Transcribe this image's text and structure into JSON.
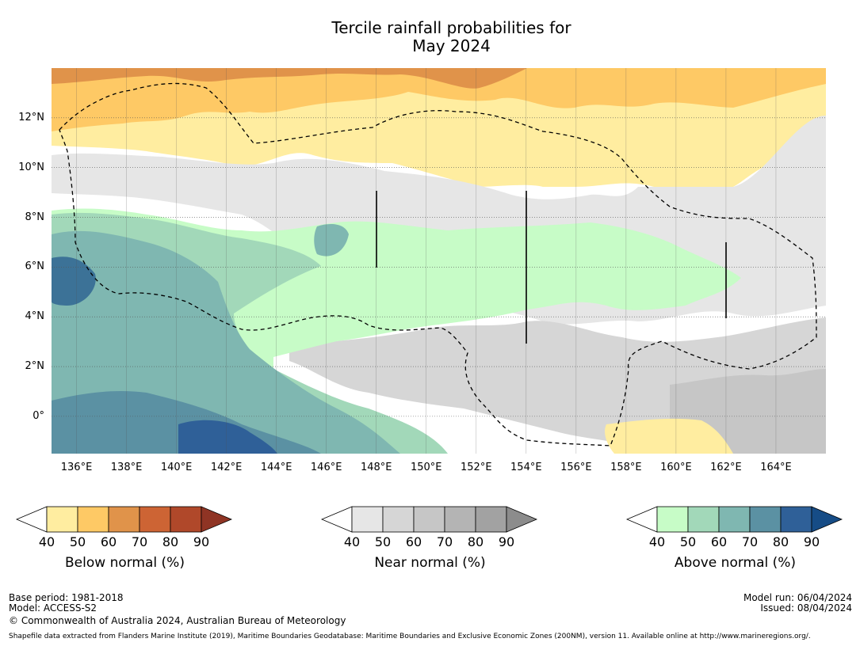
{
  "title": {
    "line1": "Tercile rainfall probabilities for",
    "line2": "May 2024"
  },
  "map": {
    "lon_range": [
      135,
      166
    ],
    "lat_range": [
      -1.5,
      14
    ],
    "x_ticks": [
      "136°E",
      "138°E",
      "140°E",
      "142°E",
      "144°E",
      "146°E",
      "148°E",
      "150°E",
      "152°E",
      "154°E",
      "156°E",
      "158°E",
      "160°E",
      "162°E",
      "164°E"
    ],
    "x_tick_values": [
      136,
      138,
      140,
      142,
      144,
      146,
      148,
      150,
      152,
      154,
      156,
      158,
      160,
      162,
      164
    ],
    "y_ticks": [
      "12°N",
      "10°N",
      "8°N",
      "6°N",
      "4°N",
      "2°N",
      "0°"
    ],
    "y_tick_values": [
      12,
      10,
      8,
      6,
      4,
      2,
      0
    ],
    "grid": true
  },
  "legends": [
    {
      "name": "Below normal (%)",
      "ticks": [
        "40",
        "50",
        "60",
        "70",
        "80",
        "90"
      ],
      "colors": [
        "#ffffff",
        "#ffeda0",
        "#fec965",
        "#e0934a",
        "#cd6434",
        "#b0482a",
        "#8f3424"
      ]
    },
    {
      "name": "Near normal (%)",
      "ticks": [
        "40",
        "50",
        "60",
        "70",
        "80",
        "90"
      ],
      "colors": [
        "#ffffff",
        "#e6e6e6",
        "#d6d6d6",
        "#c6c6c6",
        "#b4b4b4",
        "#a2a2a2",
        "#8c8c8c"
      ]
    },
    {
      "name": "Above normal (%)",
      "ticks": [
        "40",
        "50",
        "60",
        "70",
        "80",
        "90"
      ],
      "colors": [
        "#ffffff",
        "#c7fcc7",
        "#a2d8b9",
        "#7fb7b1",
        "#5b91a3",
        "#2f6098",
        "#164c86"
      ]
    }
  ],
  "footer": {
    "base_period": "Base period: 1981-2018",
    "model": "Model: ACCESS-S2",
    "copyright": "© Commonwealth of Australia 2024, Australian Bureau of Meteorology",
    "model_run": "Model run: 06/04/2024",
    "issued": "Issued: 08/04/2024",
    "shapefile": "Shapefile data extracted from Flanders Marine Institute (2019), Maritime Boundaries Geodatabase: Maritime Boundaries and Exclusive Economic Zones (200NM), version 11. Available online at http://www.marineregions.org/."
  }
}
